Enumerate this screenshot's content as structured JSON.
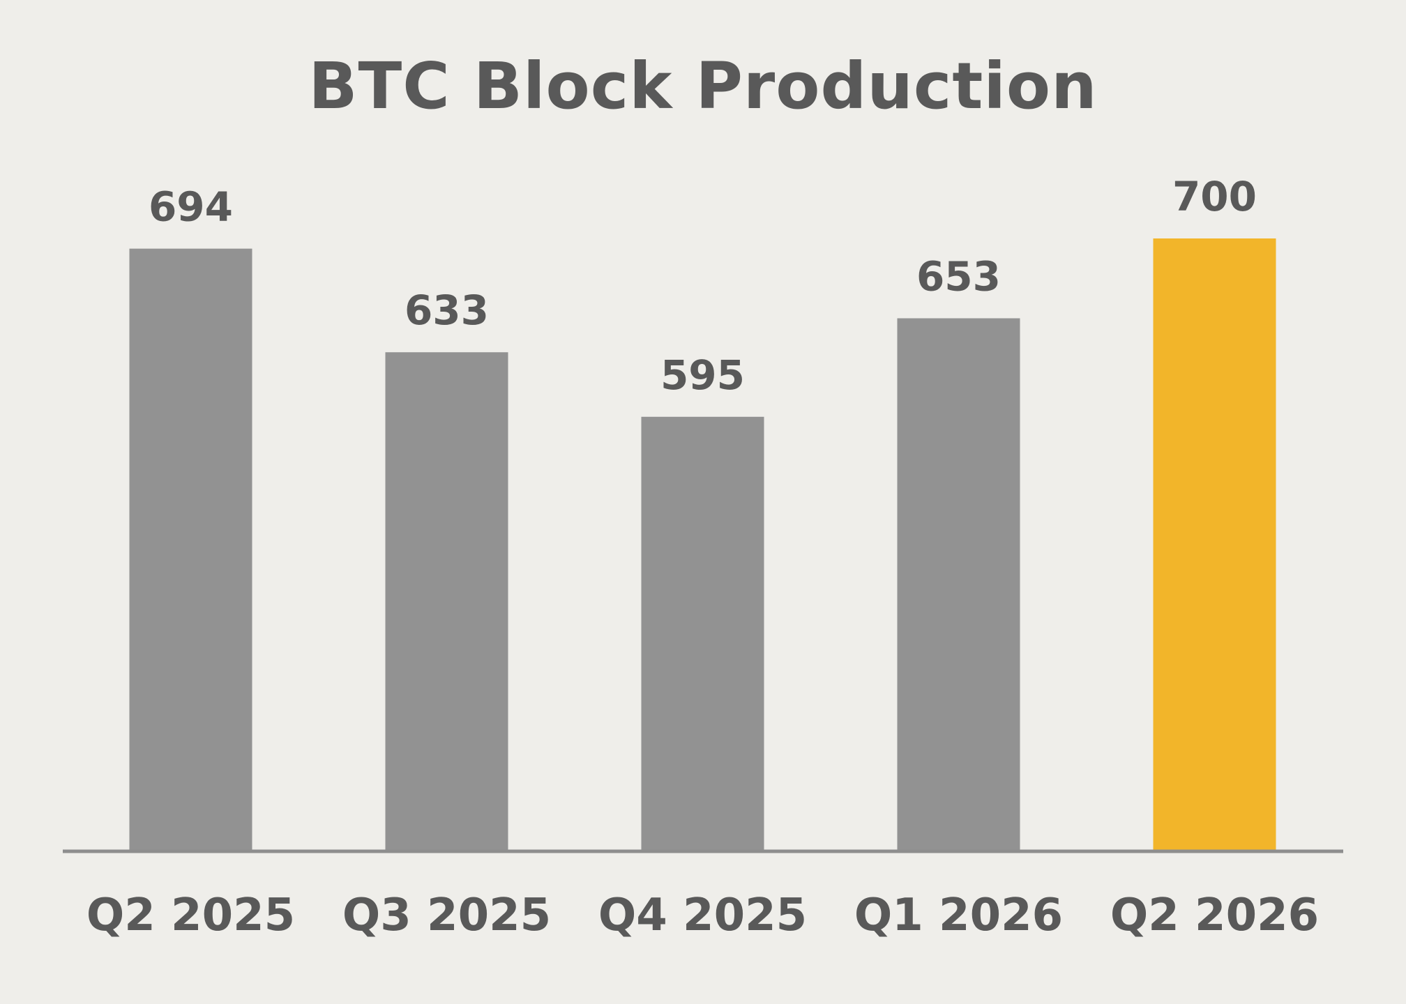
{
  "chart_data": {
    "type": "bar",
    "title": "BTC Block Production",
    "categories": [
      "Q2 2025",
      "Q3 2025",
      "Q4 2025",
      "Q1 2026",
      "Q2 2026"
    ],
    "values": [
      694,
      633,
      595,
      653,
      700
    ],
    "xlabel": "",
    "ylabel": "",
    "ylim": [
      340,
      700
    ],
    "grid": false,
    "legend": "none",
    "colors": {
      "default_bar": "#929292",
      "highlight_bar": "#F2B52A",
      "axis": "#8E8E8E",
      "text": "#595959",
      "background": "#EFEEEA"
    },
    "highlight_index": 4
  }
}
